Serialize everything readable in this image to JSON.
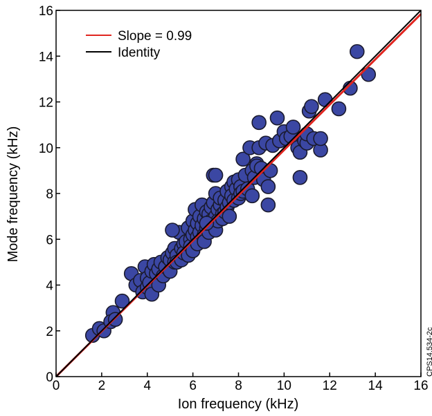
{
  "chart_data": {
    "type": "scatter",
    "xlabel": "Ion frequency (kHz)",
    "ylabel": "Mode frequency (kHz)",
    "xlim": [
      0,
      16
    ],
    "ylim": [
      0,
      16
    ],
    "xticks": [
      0,
      2,
      4,
      6,
      8,
      10,
      12,
      14,
      16
    ],
    "yticks": [
      0,
      2,
      4,
      6,
      8,
      10,
      12,
      14,
      16
    ],
    "grid": false,
    "legend_position": "top-left",
    "marker_color": "#3b47a3",
    "marker_edge": "#1a1a2e",
    "series": [
      {
        "kind": "points",
        "x": [
          1.6,
          1.9,
          2.1,
          2.5,
          2.4,
          2.6,
          2.9,
          3.3,
          3.5,
          3.7,
          3.8,
          3.9,
          4.0,
          4.0,
          4.1,
          4.2,
          4.2,
          4.3,
          4.4,
          4.5,
          4.5,
          4.6,
          4.7,
          4.8,
          4.9,
          5.0,
          5.0,
          5.1,
          5.2,
          5.2,
          5.3,
          5.3,
          5.4,
          5.5,
          5.5,
          5.6,
          5.6,
          5.7,
          5.8,
          5.8,
          5.9,
          5.9,
          6.0,
          6.0,
          6.0,
          6.1,
          6.1,
          6.2,
          6.2,
          6.2,
          6.3,
          6.3,
          6.4,
          6.4,
          6.5,
          6.5,
          6.5,
          6.6,
          6.6,
          6.7,
          6.7,
          6.8,
          6.8,
          6.9,
          6.9,
          6.9,
          7.0,
          7.0,
          7.0,
          7.1,
          7.1,
          7.2,
          7.2,
          7.3,
          7.3,
          7.4,
          7.4,
          7.5,
          7.5,
          7.6,
          7.6,
          7.7,
          7.7,
          7.8,
          7.8,
          7.9,
          8.0,
          8.0,
          8.1,
          8.1,
          8.2,
          8.2,
          8.3,
          8.4,
          8.5,
          8.6,
          8.6,
          8.7,
          8.8,
          8.8,
          8.9,
          8.9,
          9.0,
          9.1,
          9.2,
          9.3,
          9.3,
          9.4,
          9.5,
          9.7,
          9.8,
          10.0,
          10.1,
          10.3,
          10.4,
          10.6,
          10.7,
          10.7,
          10.9,
          11.0,
          11.0,
          11.1,
          11.2,
          11.3,
          11.6,
          11.6,
          11.8,
          12.4,
          12.9,
          13.2,
          13.7,
          7.0,
          6.6,
          5.1
        ],
        "y": [
          1.8,
          2.1,
          2.0,
          2.8,
          2.4,
          2.5,
          3.3,
          4.5,
          4.0,
          4.2,
          3.7,
          4.8,
          4.3,
          3.9,
          4.1,
          4.6,
          3.6,
          4.9,
          4.5,
          4.0,
          4.7,
          5.0,
          4.4,
          4.8,
          5.2,
          5.1,
          4.6,
          5.4,
          5.0,
          5.6,
          5.3,
          5.0,
          6.3,
          5.6,
          5.1,
          5.8,
          5.4,
          5.9,
          6.5,
          5.3,
          6.0,
          5.7,
          6.2,
          5.5,
          6.8,
          6.4,
          7.3,
          6.1,
          5.8,
          6.7,
          6.3,
          7.0,
          6.6,
          7.5,
          6.2,
          6.9,
          5.9,
          7.2,
          6.5,
          7.1,
          6.3,
          7.4,
          6.8,
          6.6,
          7.6,
          8.8,
          7.0,
          6.4,
          8.0,
          7.3,
          6.8,
          7.5,
          7.8,
          7.1,
          6.9,
          7.7,
          7.2,
          7.4,
          8.1,
          7.6,
          7.0,
          8.3,
          7.9,
          7.7,
          8.5,
          8.2,
          7.8,
          8.6,
          8.3,
          8.0,
          9.5,
          8.1,
          8.8,
          8.2,
          10.0,
          7.9,
          9.0,
          8.7,
          9.3,
          9.2,
          10.0,
          11.1,
          9.1,
          8.6,
          10.2,
          8.3,
          7.5,
          9.0,
          10.1,
          11.3,
          10.3,
          10.7,
          10.4,
          10.5,
          10.9,
          10.0,
          9.8,
          8.7,
          10.3,
          10.2,
          10.6,
          11.6,
          11.8,
          10.4,
          9.9,
          10.4,
          12.1,
          11.7,
          12.6,
          14.2,
          13.2,
          8.8,
          6.7,
          6.4
        ]
      },
      {
        "kind": "line",
        "name": "Slope = 0.99",
        "color": "#e0251f",
        "x": [
          0,
          16
        ],
        "y": [
          0,
          15.84
        ]
      },
      {
        "kind": "line",
        "name": "Identity",
        "color": "#000000",
        "x": [
          0,
          16
        ],
        "y": [
          0,
          16
        ]
      }
    ]
  },
  "stamp_text": "CPS14.534-2c"
}
